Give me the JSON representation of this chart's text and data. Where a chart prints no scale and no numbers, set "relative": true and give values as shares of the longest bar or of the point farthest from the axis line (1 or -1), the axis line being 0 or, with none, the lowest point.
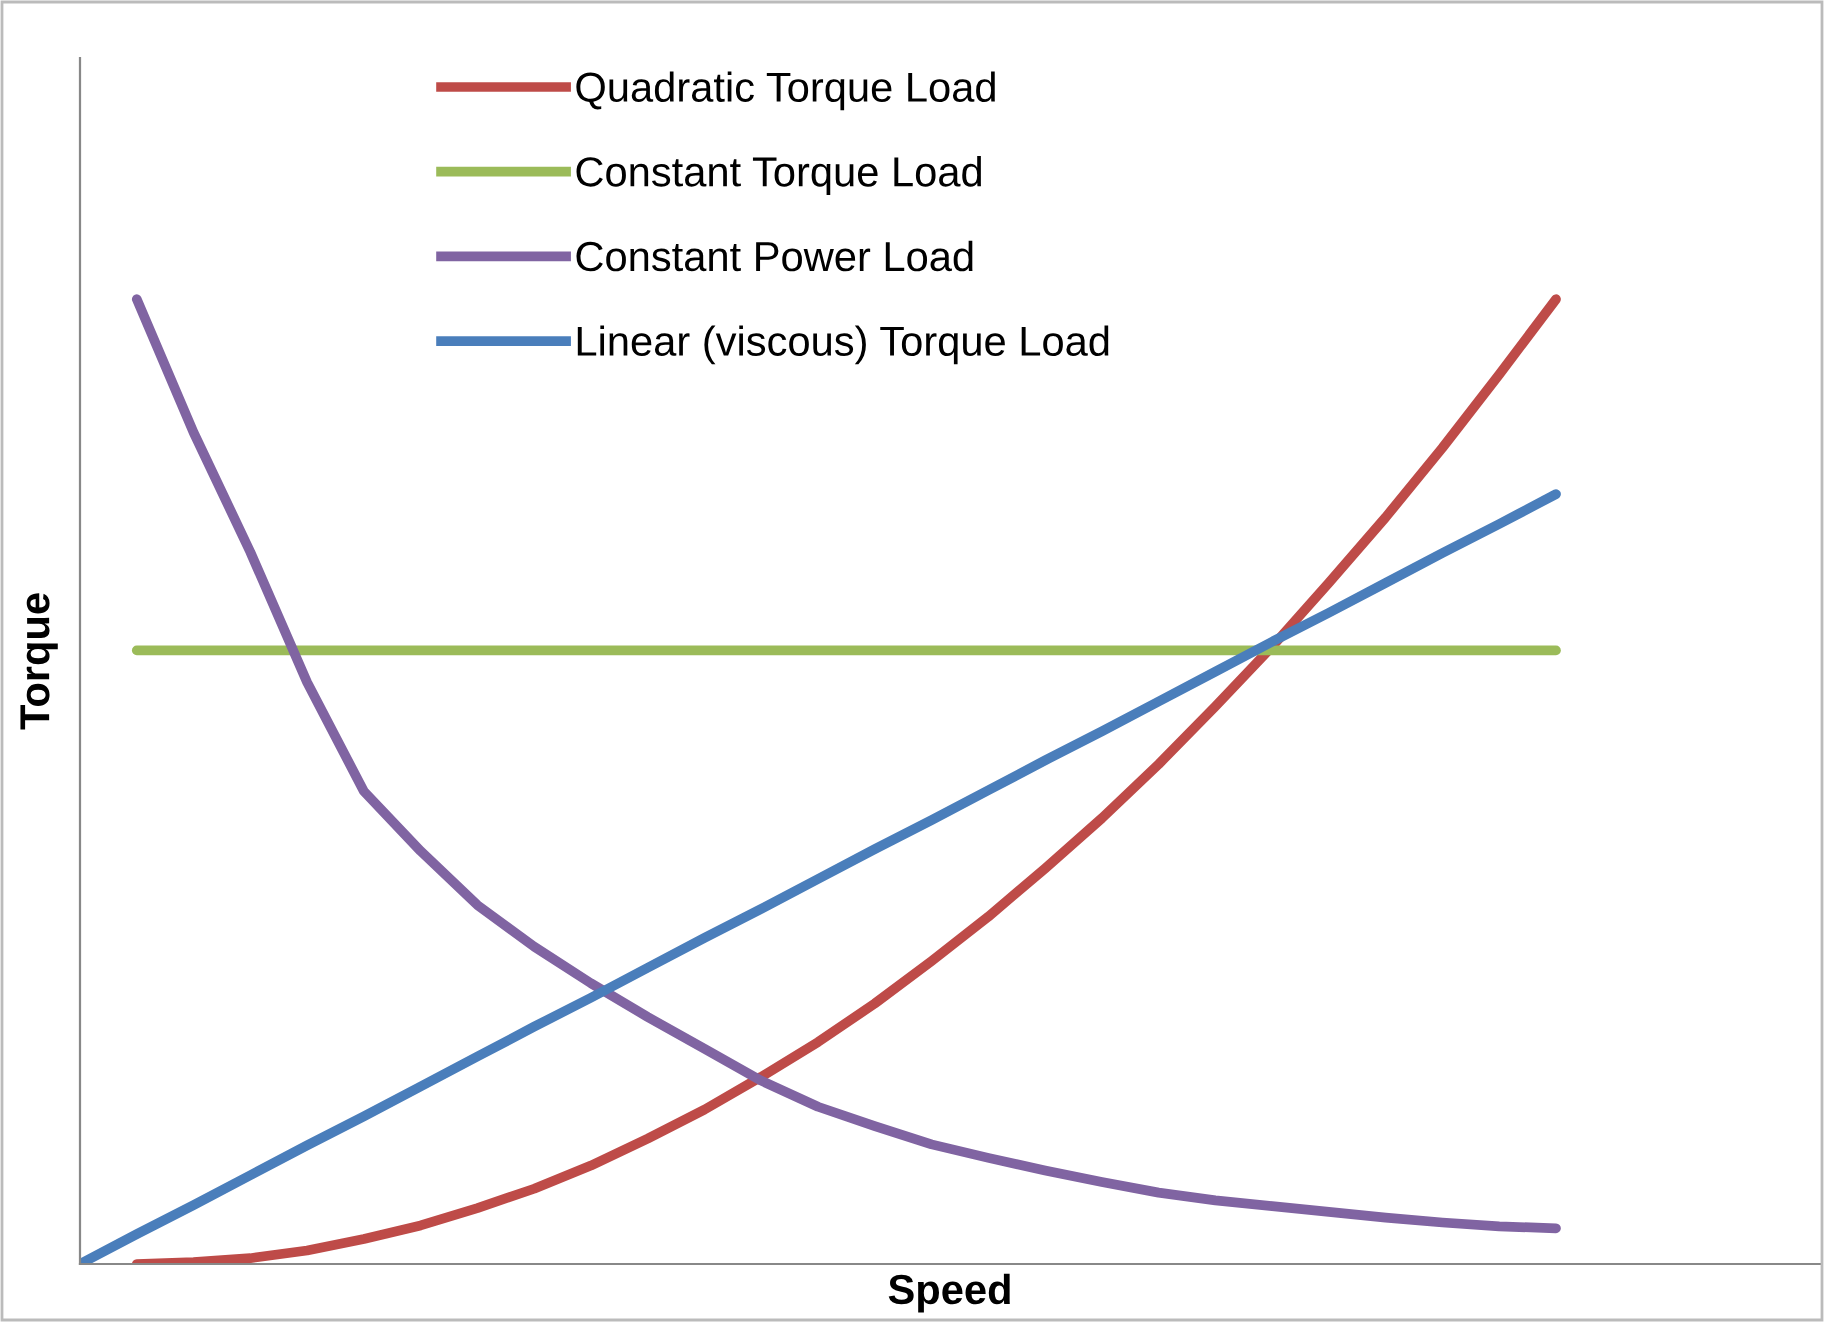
{
  "chart_data": {
    "type": "line",
    "xlabel": "Speed",
    "ylabel": "Torque",
    "relative": true,
    "legend": "top",
    "grid": false,
    "marker": "none",
    "line_style": "solid",
    "categories": [
      null,
      null,
      null,
      null,
      null,
      null,
      null,
      null,
      null,
      null,
      null,
      null,
      null,
      null,
      null,
      null,
      null,
      null,
      null,
      null,
      null,
      null,
      null,
      null,
      null,
      null,
      null
    ],
    "series": [
      {
        "name": "Quadratic Torque Load",
        "color": "#be4b48",
        "values": [
          null,
          0,
          0.002,
          0.006,
          0.014,
          0.026,
          0.04,
          0.058,
          0.078,
          0.102,
          0.13,
          0.16,
          0.194,
          0.23,
          0.27,
          0.314,
          0.36,
          0.41,
          0.462,
          0.518,
          0.578,
          0.64,
          0.706,
          0.774,
          0.846,
          0.922,
          1
        ]
      },
      {
        "name": "Constant Torque Load",
        "color": "#9bbb59",
        "values": [
          null,
          0.636,
          0.636,
          0.636,
          0.636,
          0.636,
          0.636,
          0.636,
          0.636,
          0.636,
          0.636,
          0.636,
          0.636,
          0.636,
          0.636,
          0.636,
          0.636,
          0.636,
          0.636,
          0.636,
          0.636,
          0.636,
          0.636,
          0.636,
          0.636,
          0.636,
          0.636
        ]
      },
      {
        "name": "Constant Power Load",
        "color": "#8064a2",
        "values": [
          null,
          1,
          0.862,
          0.738,
          0.603,
          0.49,
          0.428,
          0.372,
          0.329,
          0.291,
          0.256,
          0.223,
          0.19,
          0.163,
          0.143,
          0.124,
          0.11,
          0.097,
          0.085,
          0.074,
          0.066,
          0.06,
          0.054,
          0.048,
          0.043,
          0.039,
          0.037
        ]
      },
      {
        "name": "Linear (viscous) Torque Load",
        "color": "#4a7ebb",
        "values": [
          0,
          0.031,
          0.061,
          0.092,
          0.123,
          0.153,
          0.184,
          0.215,
          0.246,
          0.276,
          0.307,
          0.338,
          0.368,
          0.399,
          0.43,
          0.46,
          0.491,
          0.522,
          0.552,
          0.583,
          0.614,
          0.645,
          0.675,
          0.706,
          0.737,
          0.767,
          0.798
        ]
      }
    ]
  }
}
